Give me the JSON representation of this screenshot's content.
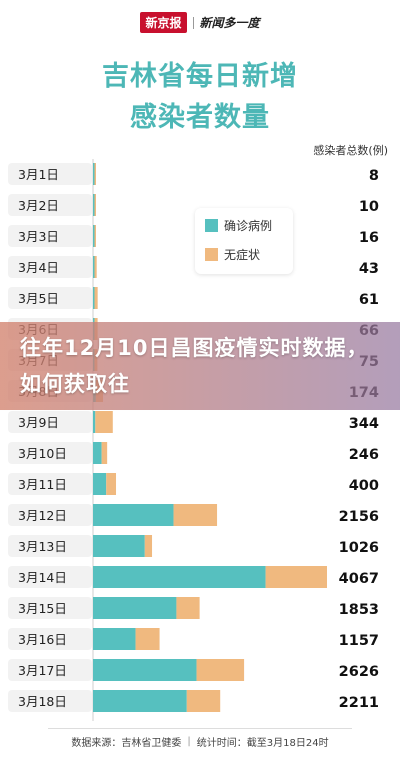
{
  "header": {
    "brand": "新京报",
    "sub_brand": "新闻多一度"
  },
  "title_line1": "吉林省每日新增",
  "title_line2": "感染者数量",
  "unit_label": "感染者总数(例)",
  "overlay_title": "往年12月10日昌图疫情实时数据，如何获取往",
  "footer": {
    "source": "数据来源：吉林省卫健委",
    "stat_time": "统计时间：截至3月18日24时"
  },
  "colors": {
    "confirmed": "#56c0bf",
    "asymptomatic": "#f0b97f",
    "title": "#4db7b6",
    "row_label_bg": "#f2f2f2"
  },
  "chart_data": {
    "type": "bar",
    "stacked": true,
    "orientation": "horizontal",
    "title": "吉林省每日新增感染者数量",
    "value_axis_label": "感染者总数(例)",
    "categories": [
      "3月1日",
      "3月2日",
      "3月3日",
      "3月4日",
      "3月5日",
      "3月6日",
      "3月7日",
      "3月8日",
      "3月9日",
      "3月10日",
      "3月11日",
      "3月12日",
      "3月13日",
      "3月14日",
      "3月15日",
      "3月16日",
      "3月17日",
      "3月18日"
    ],
    "series": [
      {
        "name": "确诊病例",
        "values": [
          1,
          1,
          2,
          5,
          6,
          12,
          25,
          50,
          40,
          150,
          230,
          1400,
          900,
          3000,
          1450,
          740,
          1800,
          1630
        ]
      },
      {
        "name": "无症状",
        "values": [
          7,
          9,
          14,
          38,
          55,
          54,
          50,
          124,
          304,
          96,
          170,
          756,
          126,
          1067,
          403,
          417,
          826,
          581
        ]
      }
    ],
    "totals": [
      8,
      10,
      16,
      43,
      61,
      66,
      75,
      174,
      344,
      246,
      400,
      2156,
      1026,
      4067,
      1853,
      1157,
      2626,
      2211
    ],
    "xlim": [
      0,
      4067
    ],
    "legend_position": "top-center"
  }
}
